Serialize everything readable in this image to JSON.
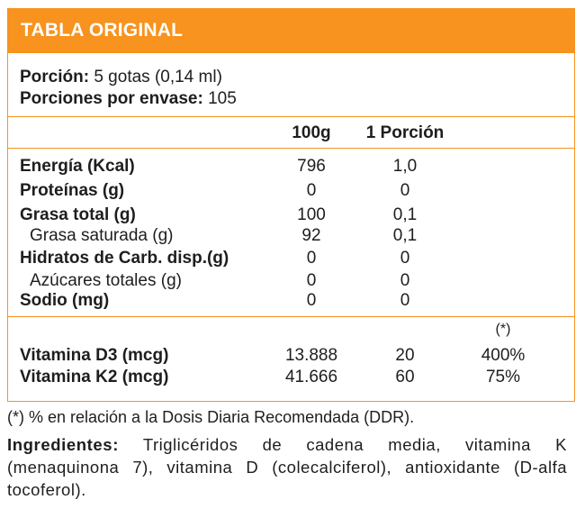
{
  "header": {
    "title": "TABLA ORIGINAL"
  },
  "serving": {
    "portion_label": "Porción:",
    "portion_value": " 5 gotas (0,14 ml)",
    "per_container_label": "Porciones por envase:",
    "per_container_value": " 105"
  },
  "columns": {
    "col_100g": "100g",
    "col_portion": "1 Porción"
  },
  "nutrients": [
    {
      "name": "Energía (Kcal)",
      "bold": true,
      "v100": "796",
      "vpor": "1,0"
    },
    {
      "name": "Proteínas (g)",
      "bold": true,
      "v100": "0",
      "vpor": "0"
    },
    {
      "name": "Grasa total (g)",
      "bold": true,
      "v100": "100",
      "vpor": "0,1"
    },
    {
      "name": "Grasa saturada (g)",
      "bold": false,
      "v100": "92",
      "vpor": "0,1"
    },
    {
      "name": "Hidratos de Carb. disp.(g)",
      "bold": true,
      "v100": "0",
      "vpor": "0"
    },
    {
      "name": "Azúcares totales (g)",
      "bold": false,
      "v100": "0",
      "vpor": "0"
    },
    {
      "name": "Sodio (mg)",
      "bold": true,
      "v100": "0",
      "vpor": "0"
    }
  ],
  "vitamins": {
    "ddr_marker": "(*)",
    "rows": [
      {
        "name": "Vitamina D3 (mcg)",
        "v100": "13.888",
        "vpor": "20",
        "ddr": "400%"
      },
      {
        "name": "Vitamina K2 (mcg)",
        "v100": "41.666",
        "vpor": "60",
        "ddr": "75%"
      }
    ]
  },
  "footnote": "(*) % en relación a la Dosis Diaria Recomendada (DDR).",
  "ingredients": {
    "label": "Ingredientes:",
    "text": " Triglicéridos de cadena media, vitamina K (menaquinona 7), vitamina D (colecalciferol), antioxidante (D-alfa tocoferol)."
  },
  "colors": {
    "accent": "#f7931e",
    "text": "#1e1e1e"
  }
}
